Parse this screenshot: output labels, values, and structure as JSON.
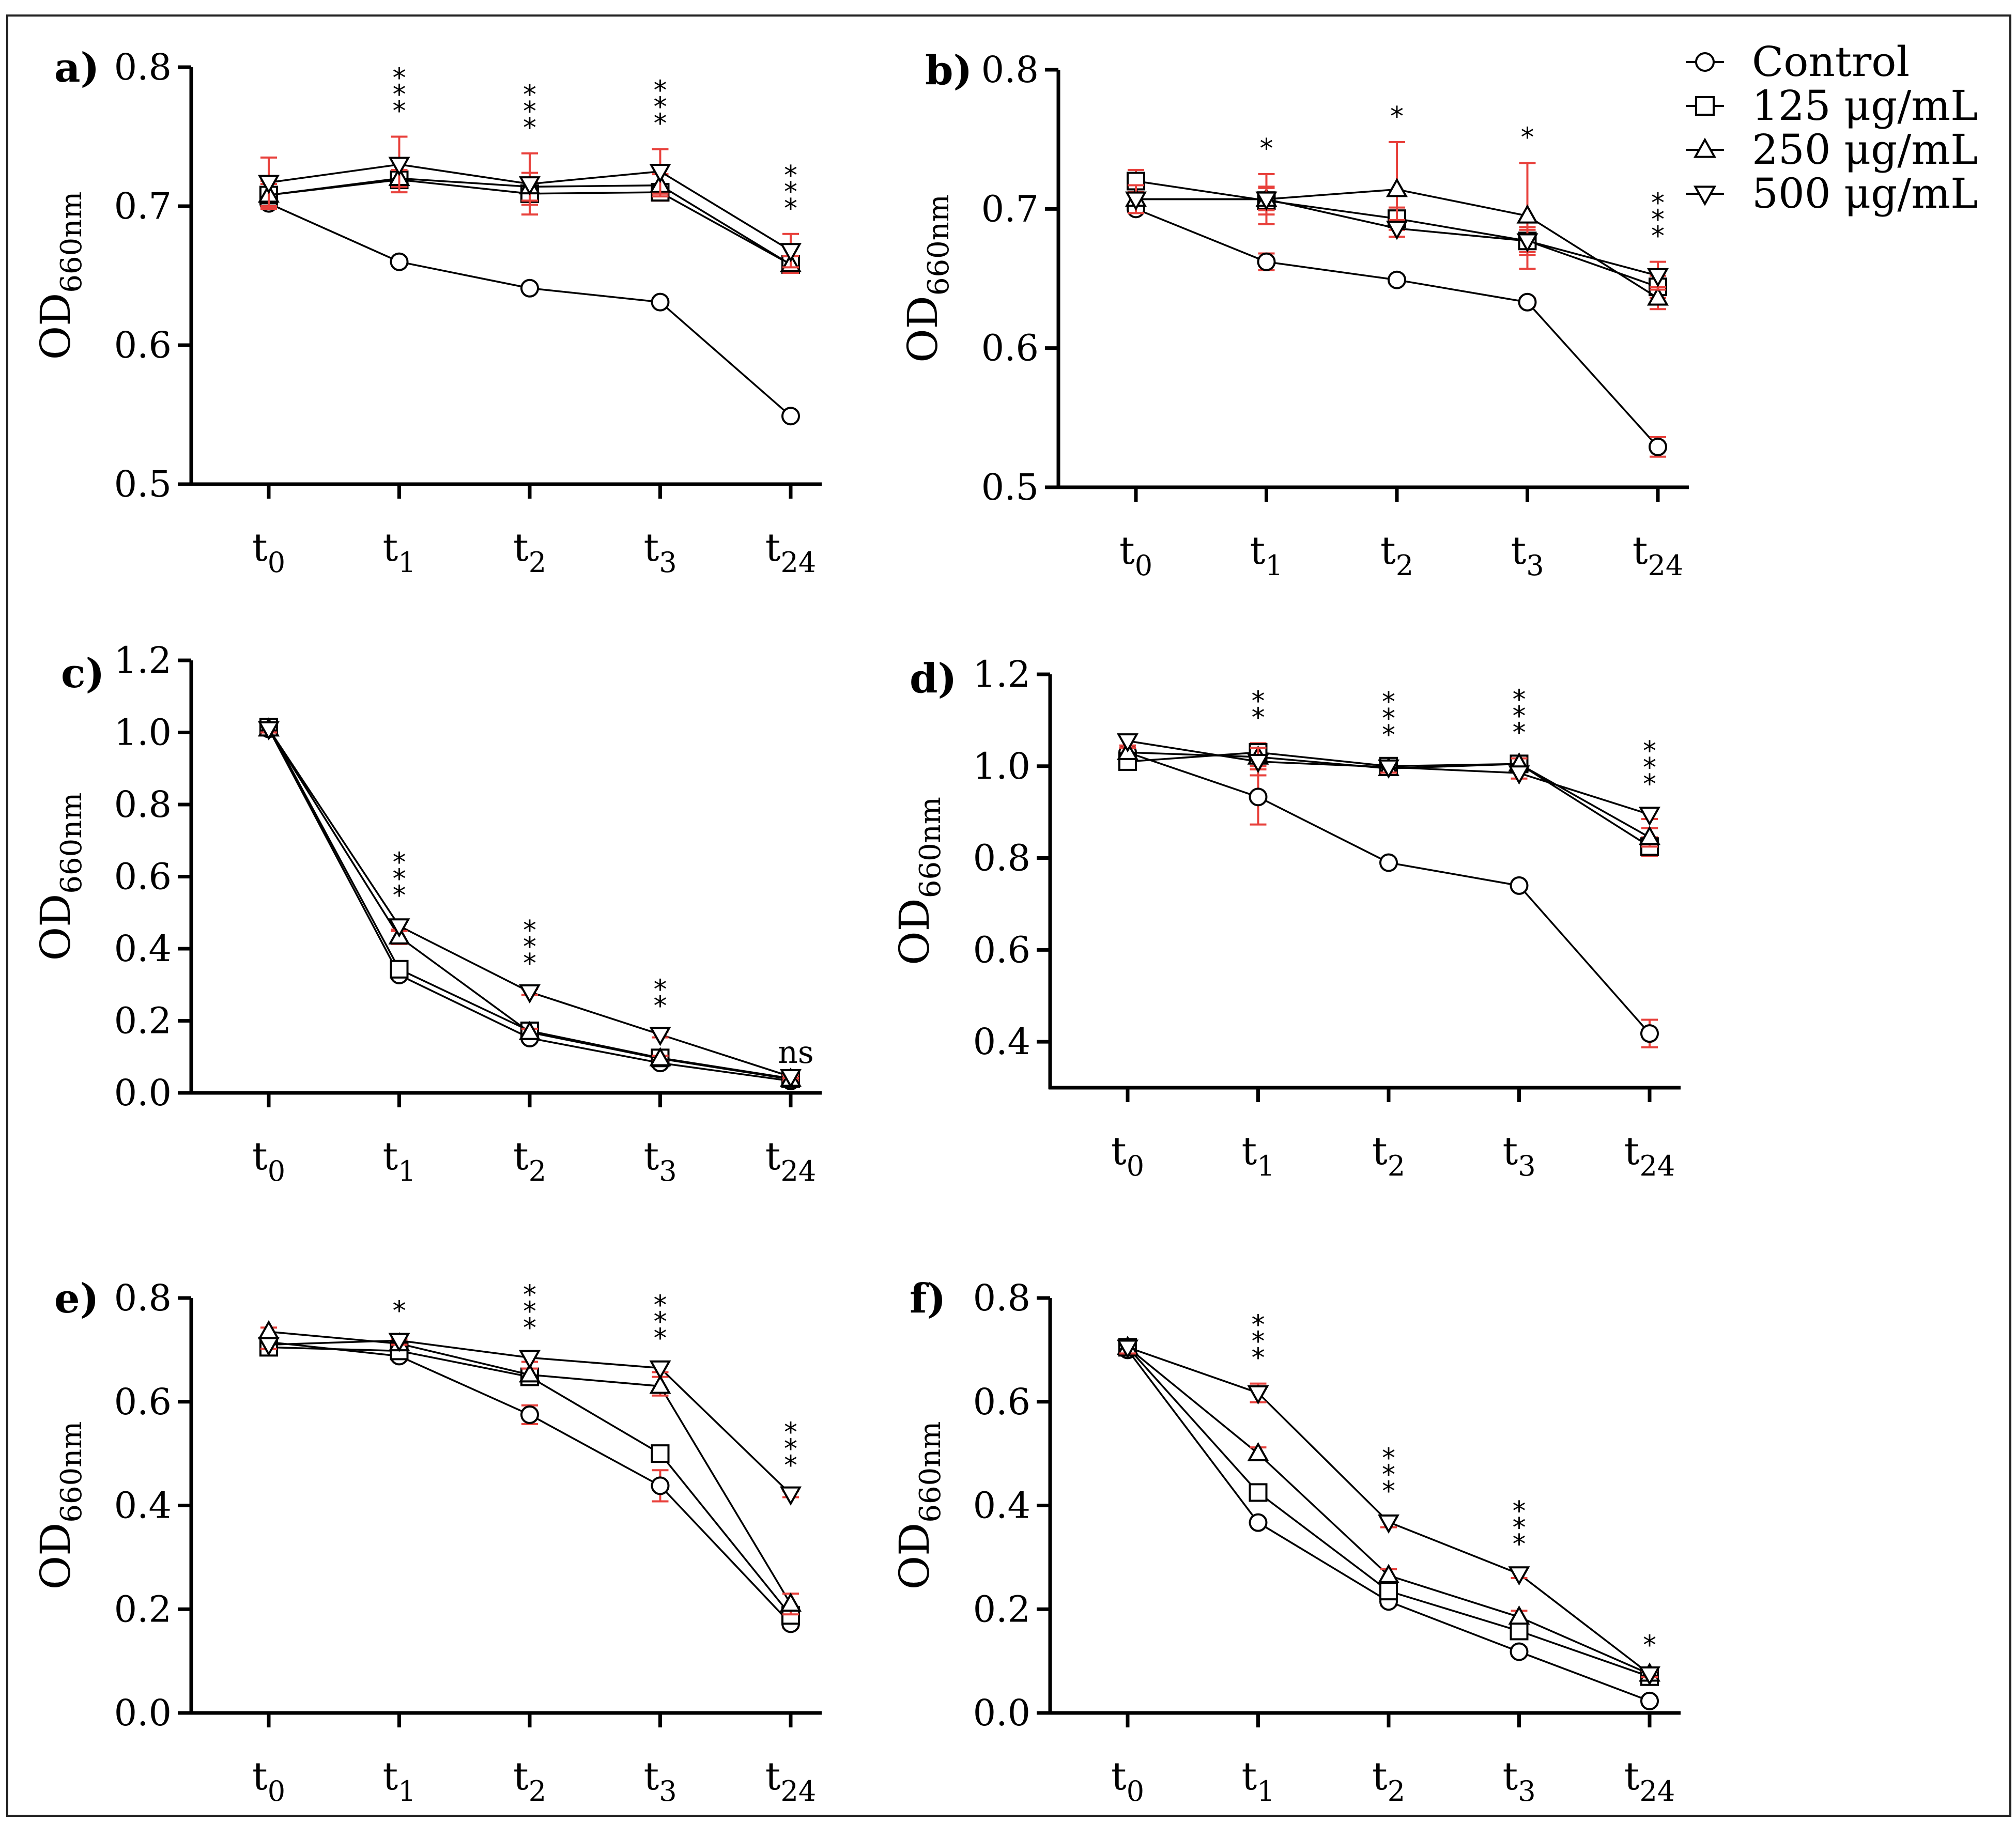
{
  "legend": [
    {
      "marker": "circle",
      "label": "Control"
    },
    {
      "marker": "square",
      "label": "125 μg/mL"
    },
    {
      "marker": "triangle-up",
      "label": "250 μg/mL"
    },
    {
      "marker": "triangle-down",
      "label": "500 μg/mL"
    }
  ],
  "colors": {
    "line": "#000000",
    "errorbar": "#e8413c",
    "marker_fill": "#ffffff"
  },
  "chart_data": [
    {
      "panel": "a)",
      "type": "line",
      "ylabel": "OD",
      "ylabel_sub": "660nm",
      "ylim": [
        0.5,
        0.8
      ],
      "yticks": [
        "0.5",
        "0.6",
        "0.7",
        "0.8"
      ],
      "categories": [
        [
          "t",
          "0"
        ],
        [
          "t",
          "1"
        ],
        [
          "t",
          "2"
        ],
        [
          "t",
          "3"
        ],
        [
          "t",
          "24"
        ]
      ],
      "series": [
        {
          "name": "Control",
          "values": [
            0.702,
            0.66,
            0.641,
            0.631,
            0.549
          ],
          "errors": [
            0.004,
            0.002,
            0.002,
            0.002,
            0.002
          ]
        },
        {
          "name": "125 μg/mL",
          "values": [
            0.708,
            0.719,
            0.709,
            0.71,
            0.658
          ],
          "errors": [
            0.008,
            0.006,
            0.008,
            0.006,
            0.004
          ]
        },
        {
          "name": "250 μg/mL",
          "values": [
            0.708,
            0.72,
            0.714,
            0.715,
            0.658
          ],
          "errors": [
            0.01,
            0.006,
            0.01,
            0.008,
            0.006
          ]
        },
        {
          "name": "500 μg/mL",
          "values": [
            0.717,
            0.73,
            0.716,
            0.725,
            0.668
          ],
          "errors": [
            0.018,
            0.02,
            0.022,
            0.016,
            0.012
          ]
        }
      ],
      "annotations": [
        "",
        "***",
        "***",
        "***",
        "***"
      ]
    },
    {
      "panel": "b)",
      "type": "line",
      "ylabel": "OD",
      "ylabel_sub": "660nm",
      "ylim": [
        0.5,
        0.8
      ],
      "yticks": [
        "0.5",
        "0.6",
        "0.7",
        "0.8"
      ],
      "categories": [
        [
          "t",
          "0"
        ],
        [
          "t",
          "1"
        ],
        [
          "t",
          "2"
        ],
        [
          "t",
          "3"
        ],
        [
          "t",
          "24"
        ]
      ],
      "series": [
        {
          "name": "Control",
          "values": [
            0.7,
            0.662,
            0.649,
            0.633,
            0.529
          ],
          "errors": [
            0.003,
            0.006,
            0.003,
            0.003,
            0.007
          ]
        },
        {
          "name": "125 μg/mL",
          "values": [
            0.72,
            0.706,
            0.693,
            0.677,
            0.644
          ],
          "errors": [
            0.008,
            0.01,
            0.008,
            0.01,
            0.008
          ]
        },
        {
          "name": "250 μg/mL",
          "values": [
            0.707,
            0.707,
            0.714,
            0.695,
            0.636
          ],
          "errors": [
            0.01,
            0.018,
            0.034,
            0.038,
            0.008
          ]
        },
        {
          "name": "500 μg/mL",
          "values": [
            0.707,
            0.707,
            0.686,
            0.677,
            0.652
          ],
          "errors": [
            0.01,
            0.008,
            0.006,
            0.008,
            0.01
          ]
        }
      ],
      "annotations": [
        "",
        "*",
        "*",
        "*",
        "***"
      ]
    },
    {
      "panel": "c)",
      "type": "line",
      "ylabel": "OD",
      "ylabel_sub": "660nm",
      "ylim": [
        0.0,
        1.2
      ],
      "yticks": [
        "0.0",
        "0.2",
        "0.4",
        "0.6",
        "0.8",
        "1.0",
        "1.2"
      ],
      "categories": [
        [
          "t",
          "0"
        ],
        [
          "t",
          "1"
        ],
        [
          "t",
          "2"
        ],
        [
          "t",
          "3"
        ],
        [
          "t",
          "24"
        ]
      ],
      "series": [
        {
          "name": "Control",
          "values": [
            1.01,
            0.327,
            0.152,
            0.083,
            0.033
          ],
          "errors": [
            0.01,
            0.01,
            0.008,
            0.006,
            0.004
          ]
        },
        {
          "name": "125 μg/mL",
          "values": [
            1.015,
            0.343,
            0.172,
            0.097,
            0.04
          ],
          "errors": [
            0.01,
            0.012,
            0.01,
            0.008,
            0.004
          ]
        },
        {
          "name": "250 μg/mL",
          "values": [
            1.01,
            0.433,
            0.168,
            0.095,
            0.038
          ],
          "errors": [
            0.01,
            0.02,
            0.01,
            0.008,
            0.004
          ]
        },
        {
          "name": "500 μg/mL",
          "values": [
            1.01,
            0.463,
            0.28,
            0.162,
            0.045
          ],
          "errors": [
            0.01,
            0.014,
            0.008,
            0.008,
            0.004
          ]
        }
      ],
      "annotations": [
        "",
        "***",
        "***",
        "**",
        "ns"
      ]
    },
    {
      "panel": "d)",
      "type": "line",
      "ylabel": "OD",
      "ylabel_sub": "660nm",
      "ylim": [
        0.3,
        1.2
      ],
      "yticks": [
        "0.4",
        "0.6",
        "0.8",
        "1.0",
        "1.2"
      ],
      "categories": [
        [
          "t",
          "0"
        ],
        [
          "t",
          "1"
        ],
        [
          "t",
          "2"
        ],
        [
          "t",
          "3"
        ],
        [
          "t",
          "24"
        ]
      ],
      "series": [
        {
          "name": "Control",
          "values": [
            1.03,
            0.933,
            0.79,
            0.74,
            0.418
          ],
          "errors": [
            0.01,
            0.06,
            0.008,
            0.006,
            0.03
          ]
        },
        {
          "name": "125 μg/mL",
          "values": [
            1.01,
            1.03,
            1.0,
            1.005,
            0.825
          ],
          "errors": [
            0.01,
            0.02,
            0.012,
            0.012,
            0.02
          ]
        },
        {
          "name": "250 μg/mL",
          "values": [
            1.03,
            1.02,
            0.995,
            1.005,
            0.845
          ],
          "errors": [
            0.01,
            0.02,
            0.012,
            0.012,
            0.02
          ]
        },
        {
          "name": "500 μg/mL",
          "values": [
            1.055,
            1.01,
            0.998,
            0.985,
            0.895
          ],
          "errors": [
            0.01,
            0.03,
            0.012,
            0.012,
            0.01
          ]
        }
      ],
      "annotations": [
        "",
        "**",
        "***",
        "***",
        "***"
      ]
    },
    {
      "panel": "e)",
      "type": "line",
      "ylabel": "OD",
      "ylabel_sub": "660nm",
      "ylim": [
        0.0,
        0.8
      ],
      "yticks": [
        "0.0",
        "0.2",
        "0.4",
        "0.6",
        "0.8"
      ],
      "categories": [
        [
          "t",
          "0"
        ],
        [
          "t",
          "1"
        ],
        [
          "t",
          "2"
        ],
        [
          "t",
          "3"
        ],
        [
          "t",
          "24"
        ]
      ],
      "series": [
        {
          "name": "Control",
          "values": [
            0.715,
            0.688,
            0.575,
            0.438,
            0.172
          ],
          "errors": [
            0.008,
            0.008,
            0.018,
            0.03,
            0.008
          ]
        },
        {
          "name": "125 μg/mL",
          "values": [
            0.705,
            0.698,
            0.648,
            0.5,
            0.188
          ],
          "errors": [
            0.008,
            0.008,
            0.01,
            0.01,
            0.008
          ]
        },
        {
          "name": "250 μg/mL",
          "values": [
            0.735,
            0.712,
            0.652,
            0.63,
            0.21
          ],
          "errors": [
            0.008,
            0.008,
            0.012,
            0.018,
            0.02
          ]
        },
        {
          "name": "500 μg/mL",
          "values": [
            0.71,
            0.718,
            0.685,
            0.665,
            0.422
          ],
          "errors": [
            0.008,
            0.008,
            0.008,
            0.008,
            0.006
          ]
        }
      ],
      "annotations": [
        "",
        "*",
        "***",
        "***",
        "***"
      ]
    },
    {
      "panel": "f)",
      "type": "line",
      "ylabel": "OD",
      "ylabel_sub": "660nm",
      "ylim": [
        0.0,
        0.8
      ],
      "yticks": [
        "0.0",
        "0.2",
        "0.4",
        "0.6",
        "0.8"
      ],
      "categories": [
        [
          "t",
          "0"
        ],
        [
          "t",
          "1"
        ],
        [
          "t",
          "2"
        ],
        [
          "t",
          "3"
        ],
        [
          "t",
          "24"
        ]
      ],
      "series": [
        {
          "name": "Control",
          "values": [
            0.7,
            0.367,
            0.215,
            0.118,
            0.023
          ],
          "errors": [
            0.01,
            0.006,
            0.008,
            0.008,
            0.004
          ]
        },
        {
          "name": "125 μg/mL",
          "values": [
            0.705,
            0.425,
            0.235,
            0.158,
            0.07
          ],
          "errors": [
            0.012,
            0.012,
            0.012,
            0.014,
            0.006
          ]
        },
        {
          "name": "250 μg/mL",
          "values": [
            0.705,
            0.5,
            0.265,
            0.185,
            0.075
          ],
          "errors": [
            0.012,
            0.012,
            0.012,
            0.012,
            0.006
          ]
        },
        {
          "name": "500 μg/mL",
          "values": [
            0.705,
            0.617,
            0.368,
            0.268,
            0.075
          ],
          "errors": [
            0.012,
            0.018,
            0.01,
            0.008,
            0.006
          ]
        }
      ],
      "annotations": [
        "",
        "***",
        "***",
        "***",
        "*"
      ]
    }
  ]
}
